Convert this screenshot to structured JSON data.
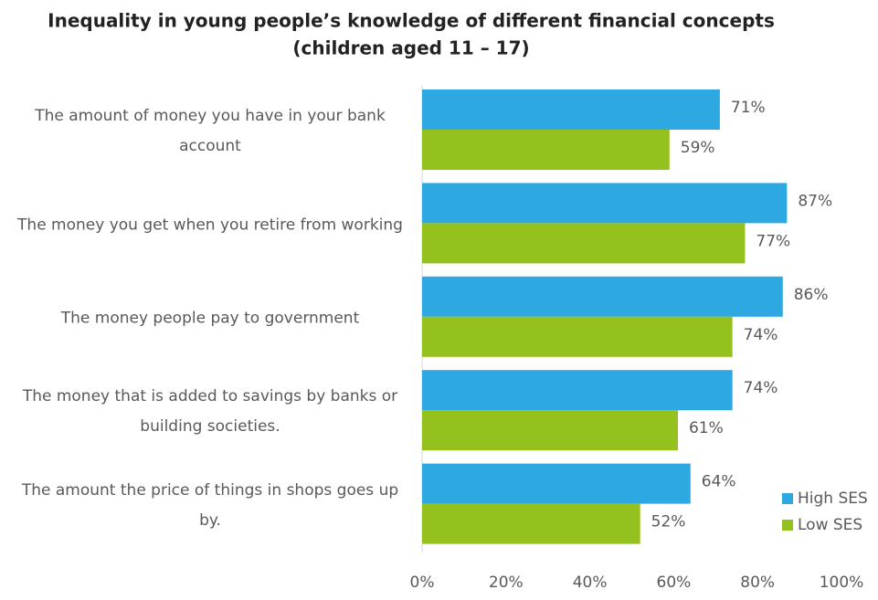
{
  "chart_data": {
    "type": "bar",
    "orientation": "horizontal",
    "title": "Inequality in young people’s knowledge of different financial concepts",
    "subtitle": "(children aged 11 – 17)",
    "categories": [
      "The amount of money you have in your bank account",
      "The money you get when you retire from working",
      "The money people pay to government",
      "The money that is added to savings by banks or building societies.",
      "The amount the price of things in shops goes up by."
    ],
    "series": [
      {
        "name": "High SES",
        "color": "#2ea8e0",
        "values": [
          71,
          87,
          86,
          74,
          64
        ],
        "value_labels": [
          "71%",
          "87%",
          "86%",
          "74%",
          "64%"
        ]
      },
      {
        "name": "Low SES",
        "color": "#95c11f",
        "values": [
          59,
          77,
          74,
          61,
          52
        ],
        "value_labels": [
          "59%",
          "77%",
          "74%",
          "61%",
          "52%"
        ]
      }
    ],
    "xlim": [
      0,
      100
    ],
    "xticks": [
      {
        "value": 0,
        "label": "0%"
      },
      {
        "value": 20,
        "label": "20%"
      },
      {
        "value": 40,
        "label": "40%"
      },
      {
        "value": 60,
        "label": "60%"
      },
      {
        "value": 80,
        "label": "80%"
      },
      {
        "value": 100,
        "label": "100%"
      }
    ],
    "grid": false,
    "legend": "lower right"
  }
}
